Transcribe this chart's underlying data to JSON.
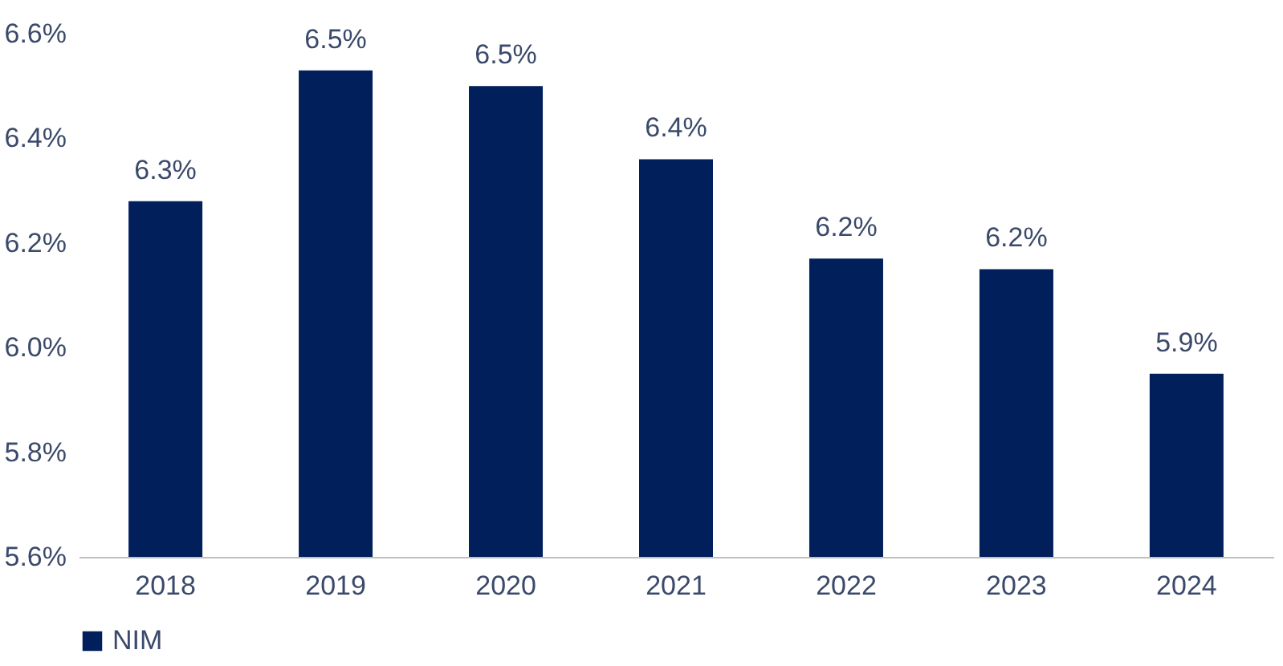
{
  "chart_data": {
    "type": "bar",
    "categories": [
      "2018",
      "2019",
      "2020",
      "2021",
      "2022",
      "2023",
      "2024"
    ],
    "series": [
      {
        "name": "NIM",
        "color": "#001f5b",
        "values": [
          6.28,
          6.53,
          6.5,
          6.36,
          6.17,
          6.15,
          5.95
        ],
        "value_labels": [
          "6.3%",
          "6.5%",
          "6.5%",
          "6.4%",
          "6.2%",
          "6.2%",
          "5.9%"
        ]
      }
    ],
    "ylim": [
      5.6,
      6.6
    ],
    "yticks": [
      {
        "value": 5.6,
        "label": "5.6%"
      },
      {
        "value": 5.8,
        "label": "5.8%"
      },
      {
        "value": 6.0,
        "label": "6.0%"
      },
      {
        "value": 6.2,
        "label": "6.2%"
      },
      {
        "value": 6.4,
        "label": "6.4%"
      },
      {
        "value": 6.6,
        "label": "6.6%"
      }
    ],
    "grid": false,
    "legend": "bottom"
  }
}
